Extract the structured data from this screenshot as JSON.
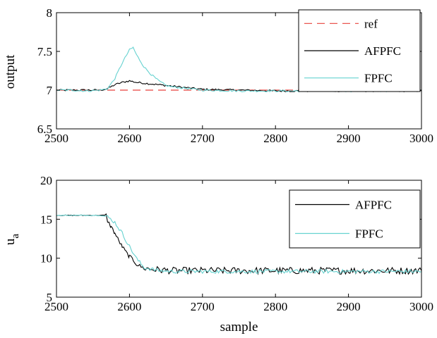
{
  "chart_data": [
    {
      "type": "line",
      "xlabel": "",
      "ylabel": "output",
      "xlim": [
        2500,
        3000
      ],
      "ylim": [
        6.5,
        8
      ],
      "xticks": [
        2500,
        2600,
        2700,
        2800,
        2900,
        3000
      ],
      "yticks": [
        6.5,
        7,
        7.5,
        8
      ],
      "ytick_labels": [
        "6.5",
        "7",
        "7.5",
        "8"
      ],
      "legend_position": "top-right",
      "series": [
        {
          "name": "ref",
          "color": "#e8423c",
          "style": "dashed",
          "x": [
            2500,
            3000
          ],
          "y": [
            7.0,
            7.0
          ]
        },
        {
          "name": "AFPFC",
          "color": "#000000",
          "style": "solid",
          "x": [
            2500,
            2520,
            2540,
            2560,
            2570,
            2580,
            2590,
            2600,
            2610,
            2620,
            2630,
            2640,
            2650,
            2660,
            2670,
            2680,
            2700,
            2750,
            2800,
            2850,
            2900,
            2950,
            3000
          ],
          "y": [
            7.0,
            7.0,
            7.0,
            7.0,
            7.02,
            7.07,
            7.1,
            7.12,
            7.1,
            7.09,
            7.08,
            7.07,
            7.06,
            7.05,
            7.04,
            7.03,
            7.01,
            7.0,
            6.99,
            6.99,
            6.99,
            6.99,
            6.99
          ]
        },
        {
          "name": "FPFC",
          "color": "#66d2d0",
          "style": "solid",
          "x": [
            2500,
            2520,
            2540,
            2560,
            2570,
            2580,
            2590,
            2600,
            2605,
            2610,
            2620,
            2630,
            2640,
            2650,
            2660,
            2670,
            2680,
            2700,
            2750,
            2800,
            2850,
            2900,
            2950,
            3000
          ],
          "y": [
            7.0,
            7.0,
            6.99,
            7.0,
            7.02,
            7.15,
            7.35,
            7.52,
            7.55,
            7.45,
            7.3,
            7.2,
            7.12,
            7.06,
            7.04,
            7.03,
            7.02,
            7.0,
            6.99,
            6.99,
            6.99,
            6.99,
            6.99,
            7.0
          ]
        }
      ]
    },
    {
      "type": "line",
      "xlabel": "sample",
      "ylabel": "u",
      "ylabel_subscript": "a",
      "xlim": [
        2500,
        3000
      ],
      "ylim": [
        5,
        20
      ],
      "xticks": [
        2500,
        2600,
        2700,
        2800,
        2900,
        3000
      ],
      "yticks": [
        5,
        10,
        15,
        20
      ],
      "ytick_labels": [
        "5",
        "10",
        "15",
        "20"
      ],
      "legend_position": "top-right",
      "series": [
        {
          "name": "AFPFC",
          "color": "#000000",
          "style": "solid",
          "x": [
            2500,
            2520,
            2540,
            2560,
            2568,
            2570,
            2575,
            2580,
            2585,
            2590,
            2595,
            2600,
            2605,
            2610,
            2620,
            2640,
            2660,
            2700,
            2750,
            2800,
            2850,
            2900,
            2950,
            3000
          ],
          "y": [
            15.5,
            15.5,
            15.5,
            15.5,
            15.5,
            14.8,
            14.0,
            13.2,
            12.3,
            11.5,
            10.8,
            10.2,
            9.8,
            9.2,
            8.7,
            8.5,
            8.4,
            8.4,
            8.4,
            8.4,
            8.4,
            8.4,
            8.4,
            8.4
          ]
        },
        {
          "name": "FPFC",
          "color": "#66d2d0",
          "style": "solid",
          "x": [
            2500,
            2520,
            2540,
            2560,
            2570,
            2580,
            2590,
            2600,
            2610,
            2620,
            2640,
            2660,
            2700,
            2750,
            2800,
            2850,
            2900,
            2950,
            3000
          ],
          "y": [
            15.5,
            15.5,
            15.5,
            15.5,
            15.3,
            14.6,
            13.2,
            11.5,
            9.9,
            8.8,
            8.4,
            8.3,
            8.3,
            8.3,
            8.3,
            8.3,
            8.3,
            8.3,
            8.3
          ]
        }
      ]
    }
  ]
}
